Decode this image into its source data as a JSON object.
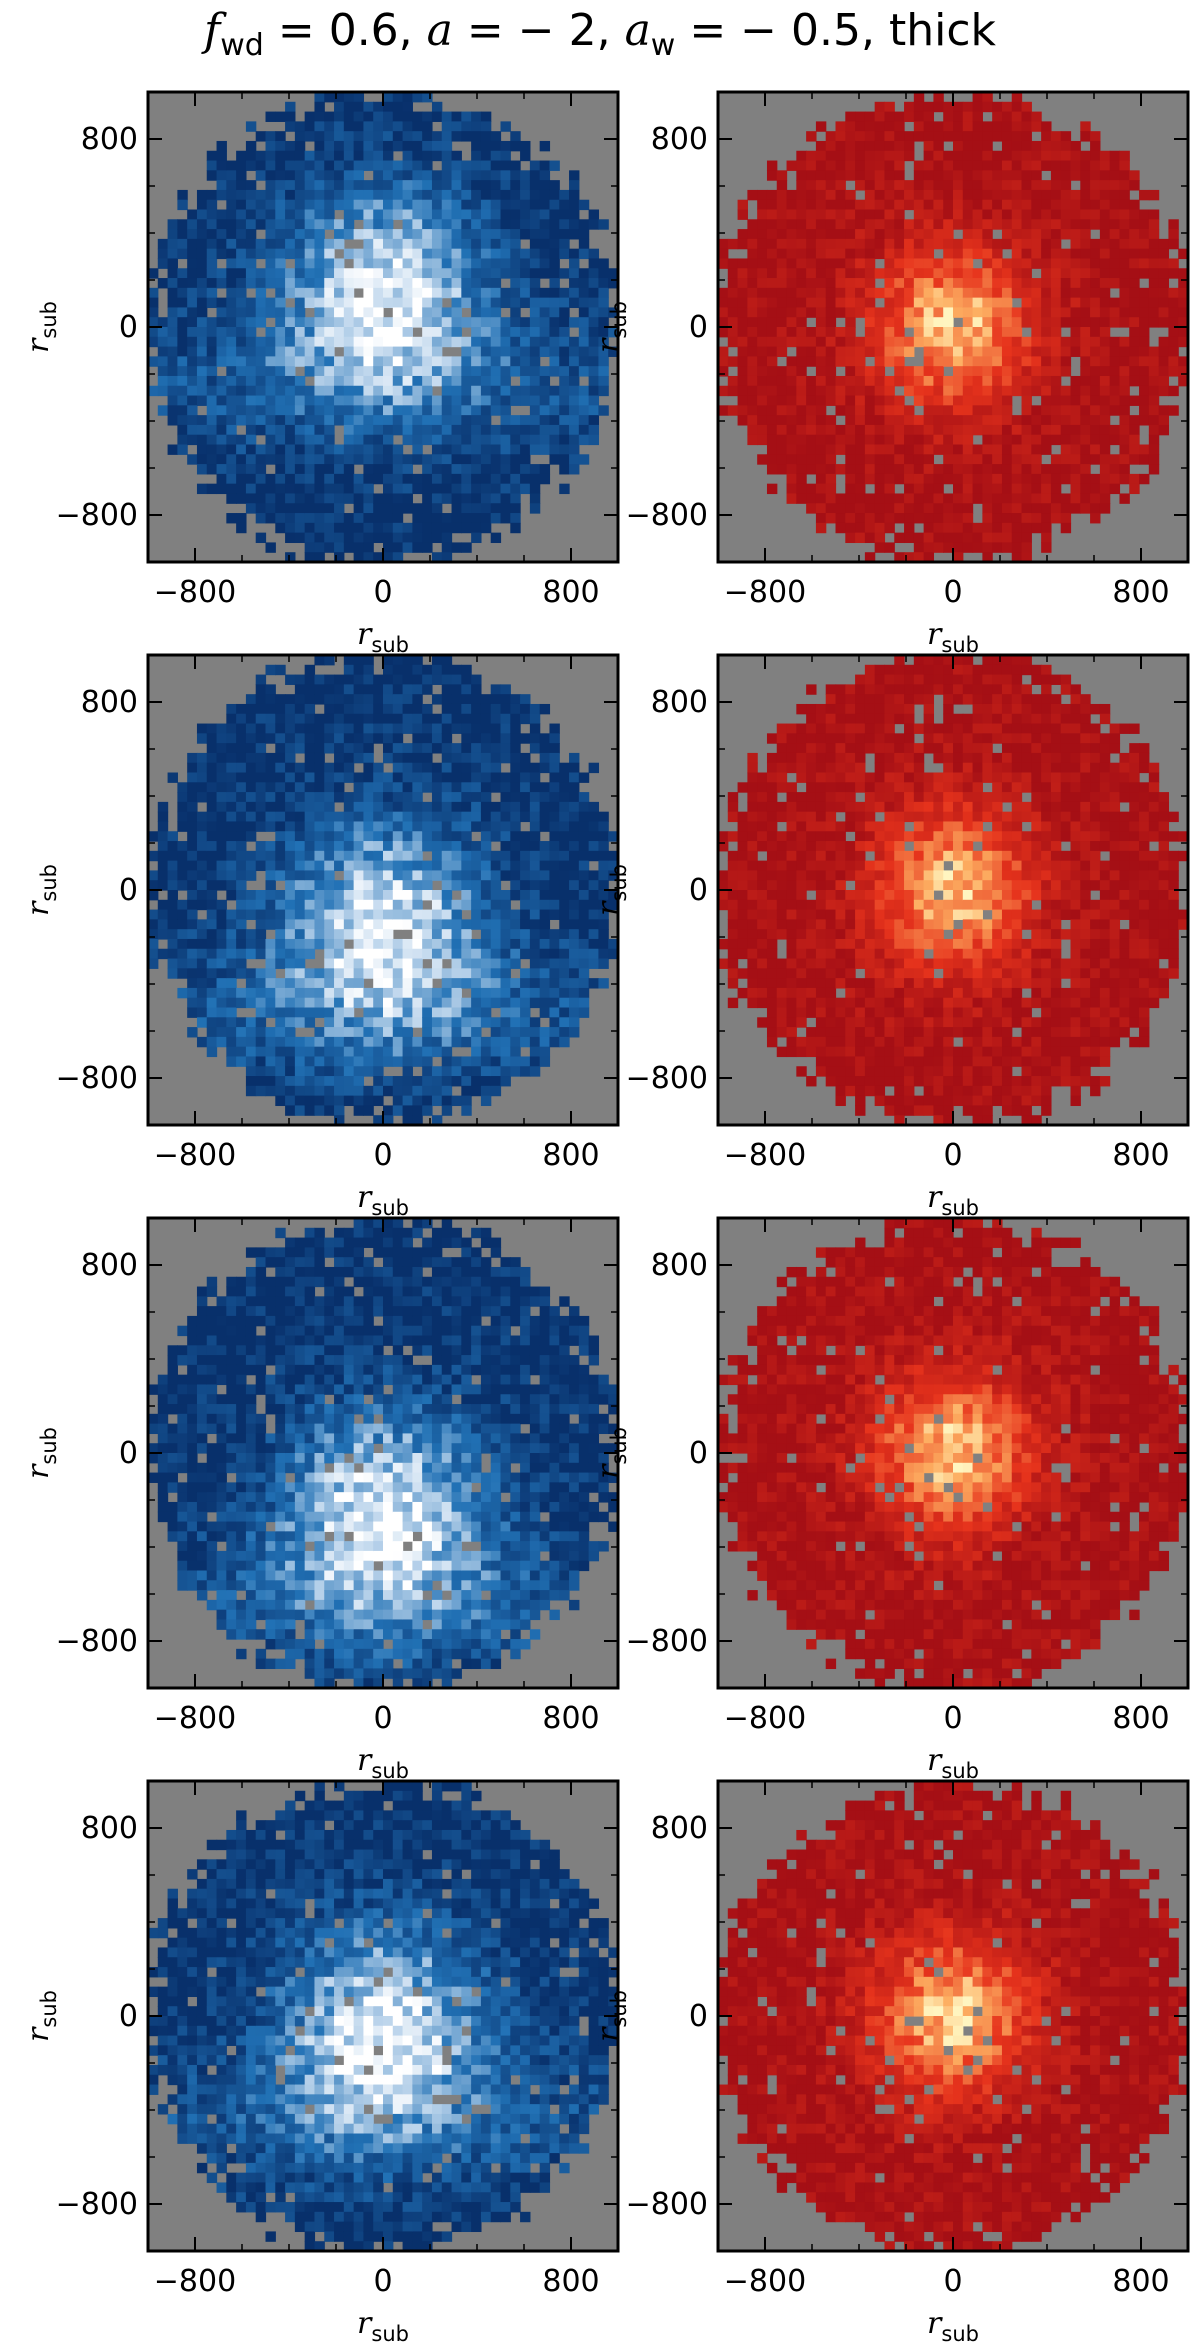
{
  "figure": {
    "title_parts": {
      "f": "f",
      "f_sub": "wd",
      "eq1": " = 0.6, ",
      "a": "a",
      "eq2": " = − 2, ",
      "aw": "a",
      "aw_sub": "w",
      "eq3": " = − 0.5, thick"
    }
  },
  "colors": {
    "background": "#808080",
    "blue_dark": "#08306b",
    "blue_mid": "#2171b5",
    "blue_light": "#c6dbef",
    "red_dark": "#a50f15",
    "red_mid": "#e6331c",
    "red_light": "#fdae61"
  },
  "chart_data": [
    {
      "type": "heatmap",
      "row": 1,
      "col": 1,
      "colormap": "Blues",
      "xlabel": "r",
      "xlabel_sub": "sub",
      "ylabel": "r",
      "ylabel_sub": "sub",
      "xlim": [
        -1000,
        1000
      ],
      "ylim": [
        -1000,
        1000
      ],
      "xticks": [
        -800,
        0,
        800
      ],
      "yticks": [
        -800,
        0,
        800
      ],
      "bright_center_y": 150,
      "grid": false
    },
    {
      "type": "heatmap",
      "row": 1,
      "col": 2,
      "colormap": "hot",
      "xlabel": "r",
      "xlabel_sub": "sub",
      "ylabel": "r",
      "ylabel_sub": "sub",
      "xlim": [
        -1000,
        1000
      ],
      "ylim": [
        -1000,
        1000
      ],
      "xticks": [
        -800,
        0,
        800
      ],
      "yticks": [
        -800,
        0,
        800
      ],
      "grid": false
    },
    {
      "type": "heatmap",
      "row": 2,
      "col": 1,
      "colormap": "Blues",
      "xlabel": "r",
      "xlabel_sub": "sub",
      "ylabel": "r",
      "ylabel_sub": "sub",
      "xlim": [
        -1000,
        1000
      ],
      "ylim": [
        -1000,
        1000
      ],
      "xticks": [
        -800,
        0,
        800
      ],
      "yticks": [
        -800,
        0,
        800
      ],
      "bright_center_y": -150,
      "grid": false
    },
    {
      "type": "heatmap",
      "row": 2,
      "col": 2,
      "colormap": "hot",
      "xlabel": "r",
      "xlabel_sub": "sub",
      "ylabel": "r",
      "ylabel_sub": "sub",
      "xlim": [
        -1000,
        1000
      ],
      "ylim": [
        -1000,
        1000
      ],
      "xticks": [
        -800,
        0,
        800
      ],
      "yticks": [
        -800,
        0,
        800
      ],
      "grid": false
    },
    {
      "type": "heatmap",
      "row": 3,
      "col": 1,
      "colormap": "Blues",
      "xlabel": "r",
      "xlabel_sub": "sub",
      "ylabel": "r",
      "ylabel_sub": "sub",
      "xlim": [
        -1000,
        1000
      ],
      "ylim": [
        -1000,
        1000
      ],
      "xticks": [
        -800,
        0,
        800
      ],
      "yticks": [
        -800,
        0,
        800
      ],
      "bright_center_y": -250,
      "grid": false
    },
    {
      "type": "heatmap",
      "row": 3,
      "col": 2,
      "colormap": "hot",
      "xlabel": "r",
      "xlabel_sub": "sub",
      "ylabel": "r",
      "ylabel_sub": "sub",
      "xlim": [
        -1000,
        1000
      ],
      "ylim": [
        -1000,
        1000
      ],
      "xticks": [
        -800,
        0,
        800
      ],
      "yticks": [
        -800,
        0,
        800
      ],
      "grid": false
    },
    {
      "type": "heatmap",
      "row": 4,
      "col": 1,
      "colormap": "Blues",
      "xlabel": "r",
      "xlabel_sub": "sub",
      "ylabel": "r",
      "ylabel_sub": "sub",
      "xlim": [
        -1000,
        1000
      ],
      "ylim": [
        -1000,
        1000
      ],
      "xticks": [
        -800,
        0,
        800
      ],
      "yticks": [
        -800,
        0,
        800
      ],
      "bright_center_y": -50,
      "grid": false
    },
    {
      "type": "heatmap",
      "row": 4,
      "col": 2,
      "colormap": "hot",
      "xlabel": "r",
      "xlabel_sub": "sub",
      "ylabel": "r",
      "ylabel_sub": "sub",
      "xlim": [
        -1000,
        1000
      ],
      "ylim": [
        -1000,
        1000
      ],
      "xticks": [
        -800,
        0,
        800
      ],
      "yticks": [
        -800,
        0,
        800
      ],
      "grid": false
    }
  ]
}
